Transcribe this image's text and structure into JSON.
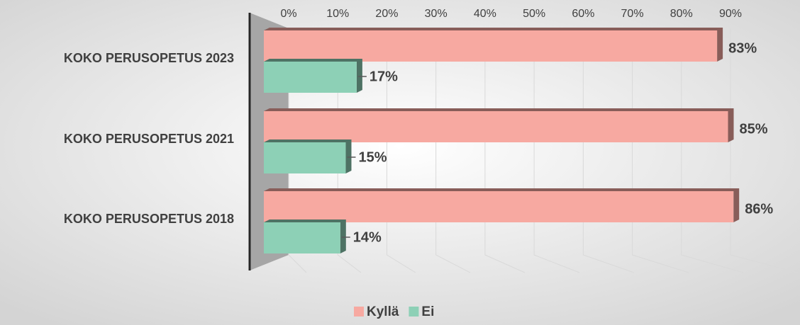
{
  "chart_data": {
    "type": "bar",
    "orientation": "horizontal",
    "categories": [
      "KOKO PERUSOPETUS 2023",
      "KOKO PERUSOPETUS 2021",
      "KOKO PERUSOPETUS 2018"
    ],
    "series": [
      {
        "name": "Kyllä",
        "color": "#f7a9a1",
        "values": [
          83,
          85,
          86
        ],
        "value_labels": [
          "83%",
          "85%",
          "86%"
        ]
      },
      {
        "name": "Ei",
        "color": "#8dd0b6",
        "values": [
          17,
          15,
          14
        ],
        "value_labels": [
          "17%",
          "15%",
          "14%"
        ]
      }
    ],
    "xlim": [
      0,
      90
    ],
    "xticks": [
      {
        "value": 0,
        "label": "0%"
      },
      {
        "value": 10,
        "label": "10%"
      },
      {
        "value": 20,
        "label": "20%"
      },
      {
        "value": 30,
        "label": "30%"
      },
      {
        "value": 40,
        "label": "40%"
      },
      {
        "value": 50,
        "label": "50%"
      },
      {
        "value": 60,
        "label": "60%"
      },
      {
        "value": 70,
        "label": "70%"
      },
      {
        "value": 80,
        "label": "80%"
      },
      {
        "value": 90,
        "label": "90%"
      }
    ],
    "grid": true,
    "legend": "bottom"
  }
}
